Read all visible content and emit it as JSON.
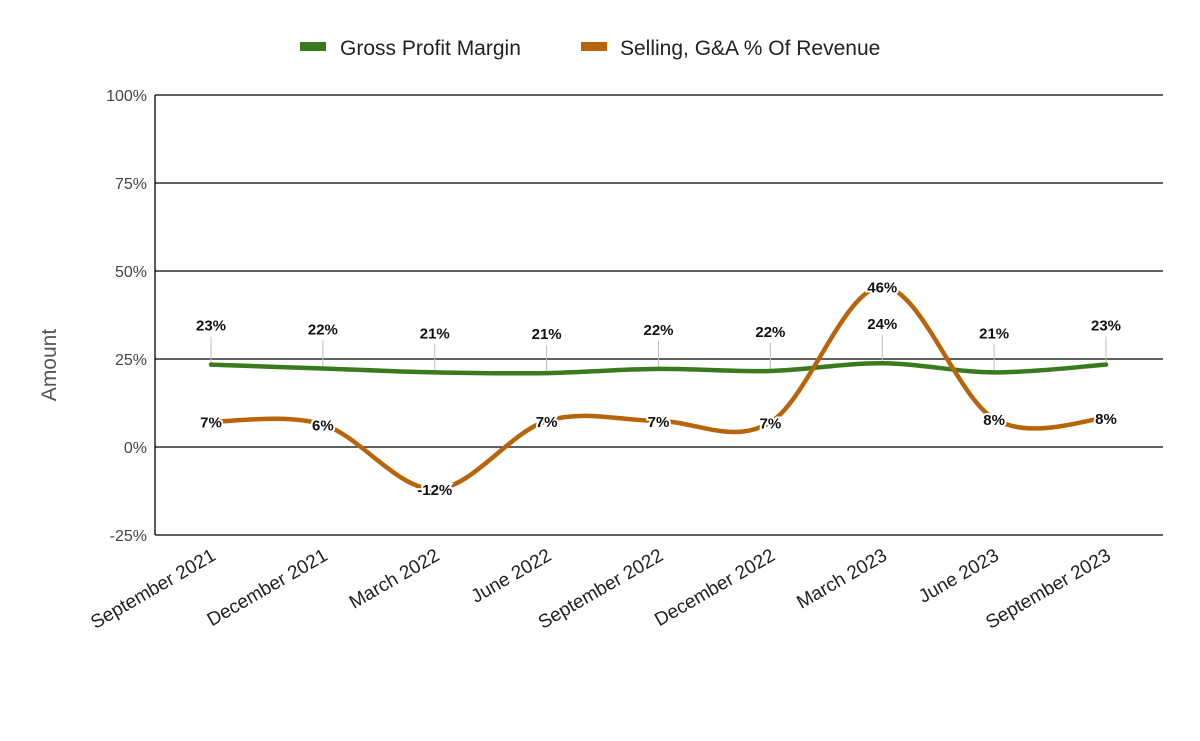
{
  "chart_data": {
    "type": "line",
    "title": "",
    "xlabel": "",
    "ylabel": "Amount",
    "ylim": [
      -25,
      100
    ],
    "yticks": [
      {
        "value": -25,
        "label": "-25%"
      },
      {
        "value": 0,
        "label": "0%"
      },
      {
        "value": 25,
        "label": "25%"
      },
      {
        "value": 50,
        "label": "50%"
      },
      {
        "value": 75,
        "label": "75%"
      },
      {
        "value": 100,
        "label": "100%"
      }
    ],
    "grid": true,
    "legend_position": "top-center",
    "categories": [
      "September 2021",
      "December 2021",
      "March 2022",
      "June 2022",
      "September 2022",
      "December 2022",
      "March 2023",
      "June 2023",
      "September 2023"
    ],
    "series": [
      {
        "name": "Gross Profit Margin",
        "color": "#3a7a1e",
        "values": [
          23.4,
          22.3,
          21.2,
          21.0,
          22.2,
          21.6,
          23.8,
          21.2,
          23.4
        ],
        "labels": [
          "23%",
          "22%",
          "21%",
          "21%",
          "22%",
          "22%",
          "24%",
          "21%",
          "23%"
        ]
      },
      {
        "name": "Selling, G&A % Of Revenue",
        "color": "#b8640a",
        "values": [
          7.2,
          6.4,
          -12.0,
          7.4,
          7.4,
          7.0,
          45.6,
          8.0,
          8.2
        ],
        "labels": [
          "7%",
          "6%",
          "-12%",
          "7%",
          "7%",
          "7%",
          "46%",
          "8%",
          "8%"
        ]
      }
    ]
  }
}
